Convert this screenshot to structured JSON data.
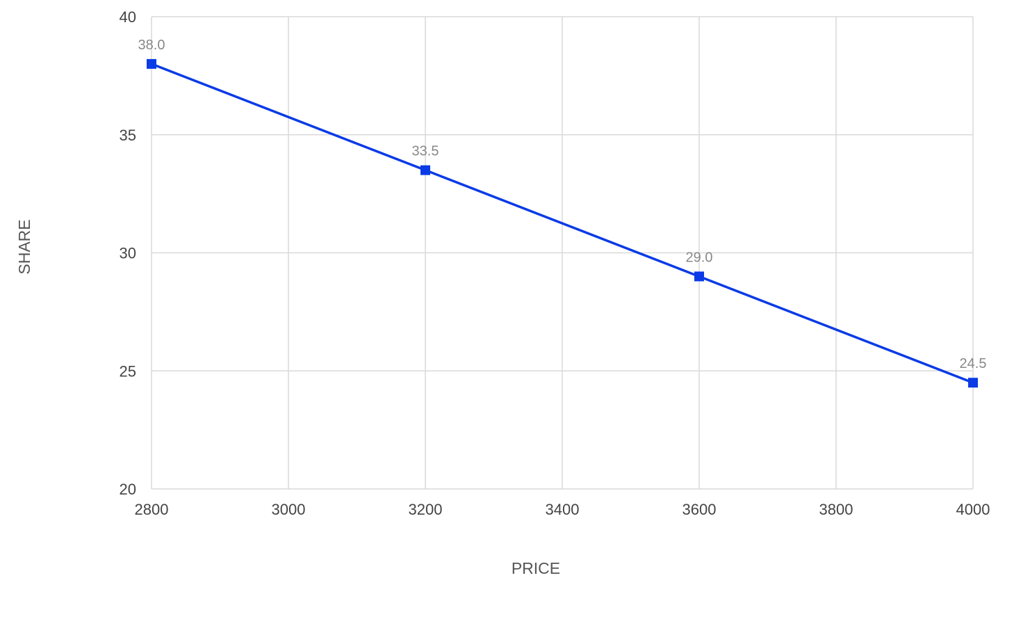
{
  "chart_data": {
    "type": "line",
    "xlabel": "PRICE",
    "ylabel": "SHARE",
    "xlim": [
      2800,
      4000
    ],
    "ylim": [
      20,
      40
    ],
    "xticks": [
      2800,
      3000,
      3200,
      3400,
      3600,
      3800,
      4000
    ],
    "yticks": [
      20,
      25,
      30,
      35,
      40
    ],
    "grid": true,
    "legend": "none",
    "colors": {
      "series": "#0a3be6",
      "grid": "#d9d9d9",
      "tick_text": "#444444",
      "data_label_text": "#888888"
    },
    "series": [
      {
        "marker": "square",
        "points": [
          {
            "x": 2800,
            "y": 38.0,
            "label": "38.0"
          },
          {
            "x": 3200,
            "y": 33.5,
            "label": "33.5"
          },
          {
            "x": 3600,
            "y": 29.0,
            "label": "29.0"
          },
          {
            "x": 4000,
            "y": 24.5,
            "label": "24.5"
          }
        ]
      }
    ]
  }
}
